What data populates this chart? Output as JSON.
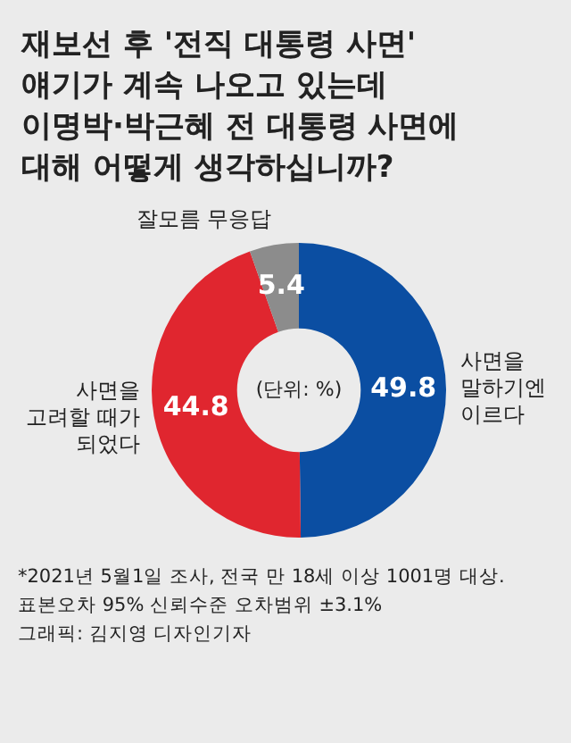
{
  "chart_data": {
    "type": "donut",
    "title": "재보선 후 '전직 대통령 사면'\n얘기가 계속 나오고 있는데\n이명박·박근혜 전 대통령 사면에\n대해 어떻게 생각하십니까?",
    "categories": [
      "사면을\n말하기엔\n이르다",
      "사면을\n고려할 때가\n되었다",
      "잘모름 무응답"
    ],
    "values": [
      49.8,
      44.8,
      5.4
    ],
    "colors": [
      "#0b4ea2",
      "#e0262f",
      "#8c8c8c"
    ],
    "data_labels": true,
    "annotations": [
      "(단위: %)",
      "*2021년 5월1일 조사, 전국 만 18세 이상 1001명 대상.",
      "표본오차 95% 신뢰수준 오차범위 ±3.1%",
      "그래픽: 김지영 디자인기자"
    ]
  }
}
